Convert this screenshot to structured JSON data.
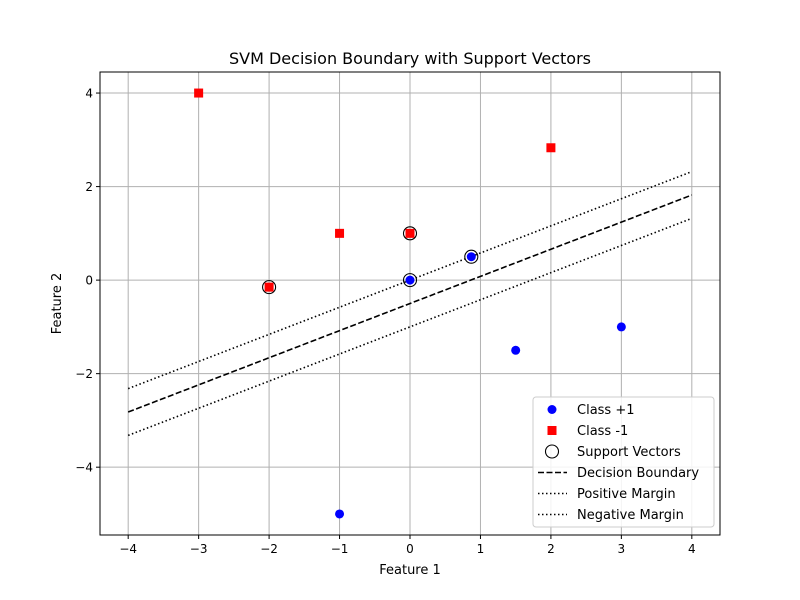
{
  "chart_data": {
    "type": "scatter",
    "title": "SVM Decision Boundary with Support Vectors",
    "xlabel": "Feature 1",
    "ylabel": "Feature 2",
    "xlim": [
      -4.4,
      4.4
    ],
    "ylim": [
      -5.45,
      4.45
    ],
    "xticks": [
      -4,
      -3,
      -2,
      -1,
      0,
      1,
      2,
      3,
      4
    ],
    "yticks": [
      -4,
      -2,
      0,
      2,
      4
    ],
    "xtick_labels": [
      "−4",
      "−3",
      "−2",
      "−1",
      "0",
      "1",
      "2",
      "3",
      "4"
    ],
    "ytick_labels": [
      "−4",
      "−2",
      "0",
      "2",
      "4"
    ],
    "grid": true,
    "legend_position": "lower-right",
    "colors": {
      "class_pos": "#0000ff",
      "class_neg": "#ff0000",
      "line": "#000000",
      "grid": "#b0b0b0"
    },
    "series": [
      {
        "name": "Class +1",
        "marker": "circle",
        "points": [
          [
            0,
            0
          ],
          [
            0.87,
            0.5
          ],
          [
            1.5,
            -1.5
          ],
          [
            3,
            -1
          ],
          [
            -1,
            -5
          ]
        ]
      },
      {
        "name": "Class -1",
        "marker": "square",
        "points": [
          [
            -3,
            4
          ],
          [
            -2,
            -0.15
          ],
          [
            -1,
            1
          ],
          [
            0,
            1
          ],
          [
            2,
            2.83
          ]
        ]
      },
      {
        "name": "Support Vectors",
        "marker": "open-circle",
        "points": [
          [
            -2,
            -0.15
          ],
          [
            0,
            1
          ],
          [
            0,
            0
          ],
          [
            0.87,
            0.5
          ]
        ]
      }
    ],
    "lines": [
      {
        "name": "Decision Boundary",
        "style": "dashed",
        "x": [
          -4,
          4
        ],
        "y": [
          -2.82,
          1.82
        ]
      },
      {
        "name": "Positive Margin",
        "style": "dotted",
        "x": [
          -4,
          4
        ],
        "y": [
          -2.32,
          2.32
        ]
      },
      {
        "name": "Negative Margin",
        "style": "dotted",
        "x": [
          -4,
          4
        ],
        "y": [
          -3.32,
          1.32
        ]
      }
    ],
    "legend": [
      "Class +1",
      "Class -1",
      "Support Vectors",
      "Decision Boundary",
      "Positive Margin",
      "Negative Margin"
    ]
  }
}
